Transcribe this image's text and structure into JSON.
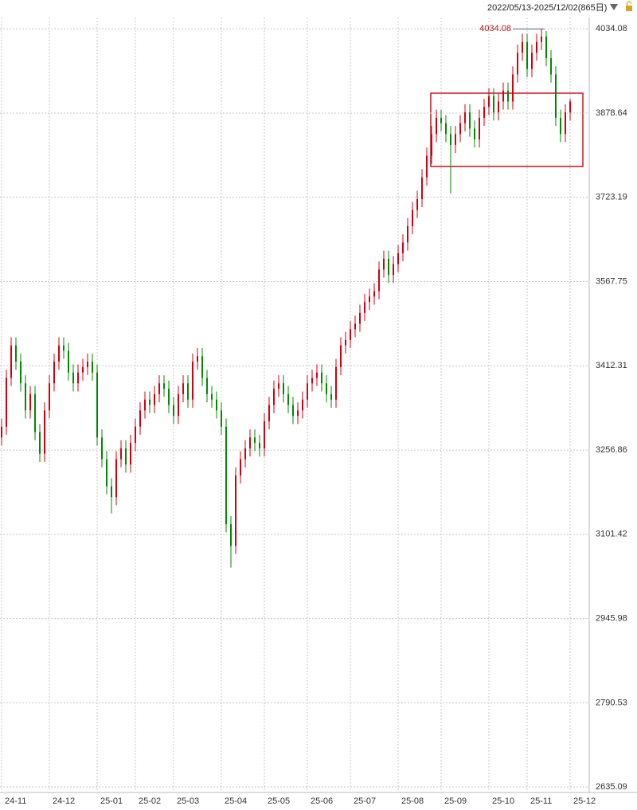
{
  "chart_data": {
    "type": "candlestick",
    "subtitle": "2022/05/13-2025/12/02(865日)",
    "categories": [
      "24-11",
      null,
      null,
      null,
      null,
      null,
      null,
      null,
      null,
      null,
      "24-12",
      null,
      null,
      null,
      null,
      null,
      null,
      null,
      null,
      null,
      "25-01",
      null,
      null,
      null,
      null,
      null,
      null,
      null,
      "25-02",
      null,
      null,
      null,
      null,
      null,
      null,
      null,
      "25-03",
      null,
      null,
      null,
      null,
      null,
      null,
      null,
      null,
      null,
      "25-04",
      null,
      null,
      null,
      null,
      null,
      null,
      null,
      null,
      "25-05",
      null,
      null,
      null,
      null,
      null,
      null,
      null,
      null,
      "25-06",
      null,
      null,
      null,
      null,
      null,
      null,
      null,
      null,
      "25-07",
      null,
      null,
      null,
      null,
      null,
      null,
      null,
      null,
      null,
      "25-08",
      null,
      null,
      null,
      null,
      null,
      null,
      null,
      null,
      "25-09",
      null,
      null,
      null,
      null,
      null,
      null,
      null,
      null,
      null,
      "25-10",
      null,
      null,
      null,
      null,
      null,
      null,
      null,
      "25-11",
      null,
      null,
      null,
      null,
      null,
      null,
      null,
      null,
      "25-12"
    ],
    "open": [
      3280,
      3300,
      3390,
      3450,
      3420,
      3380,
      3330,
      3360,
      3290,
      3250,
      3330,
      3380,
      3420,
      3450,
      3440,
      3400,
      3380,
      3400,
      3410,
      3420,
      3400,
      3280,
      3240,
      3190,
      3170,
      3240,
      3260,
      3230,
      3270,
      3300,
      3330,
      3350,
      3340,
      3360,
      3380,
      3370,
      3340,
      3320,
      3360,
      3380,
      3350,
      3420,
      3430,
      3390,
      3360,
      3350,
      3330,
      3300,
      3120,
      3080,
      3210,
      3240,
      3260,
      3280,
      3270,
      3260,
      3310,
      3340,
      3370,
      3380,
      3360,
      3340,
      3320,
      3330,
      3350,
      3380,
      3390,
      3400,
      3380,
      3360,
      3350,
      3410,
      3450,
      3460,
      3480,
      3490,
      3510,
      3530,
      3540,
      3550,
      3590,
      3610,
      3580,
      3600,
      3620,
      3640,
      3670,
      3700,
      3720,
      3760,
      3800,
      3840,
      3870,
      3860,
      3840,
      3820,
      3840,
      3860,
      3880,
      3850,
      3830,
      3870,
      3890,
      3910,
      3880,
      3900,
      3920,
      3900,
      3950,
      3990,
      4010,
      3960,
      3990,
      4010,
      4020,
      3980,
      3950,
      3870,
      3840,
      3880
    ],
    "high": [
      3315,
      3405,
      3465,
      3465,
      3435,
      3395,
      3375,
      3375,
      3305,
      3345,
      3395,
      3435,
      3465,
      3465,
      3455,
      3415,
      3415,
      3425,
      3435,
      3435,
      3415,
      3295,
      3255,
      3205,
      3255,
      3275,
      3275,
      3285,
      3315,
      3345,
      3365,
      3365,
      3375,
      3395,
      3395,
      3385,
      3355,
      3375,
      3395,
      3395,
      3435,
      3445,
      3445,
      3405,
      3375,
      3365,
      3345,
      3315,
      3135,
      3225,
      3255,
      3275,
      3295,
      3295,
      3285,
      3325,
      3355,
      3385,
      3395,
      3395,
      3375,
      3355,
      3345,
      3365,
      3395,
      3405,
      3415,
      3415,
      3395,
      3375,
      3425,
      3465,
      3475,
      3495,
      3505,
      3525,
      3545,
      3555,
      3565,
      3605,
      3625,
      3625,
      3615,
      3635,
      3655,
      3685,
      3715,
      3735,
      3775,
      3815,
      3855,
      3885,
      3885,
      3875,
      3855,
      3855,
      3875,
      3895,
      3895,
      3865,
      3885,
      3905,
      3925,
      3925,
      3915,
      3935,
      3935,
      3965,
      4005,
      4025,
      4025,
      4005,
      4025,
      4034.08,
      4030,
      3995,
      3965,
      3885,
      3895,
      3905
    ],
    "low": [
      3265,
      3285,
      3375,
      3405,
      3365,
      3315,
      3315,
      3275,
      3235,
      3235,
      3315,
      3365,
      3405,
      3425,
      3385,
      3365,
      3365,
      3385,
      3395,
      3385,
      3265,
      3225,
      3175,
      3140,
      3155,
      3225,
      3215,
      3215,
      3255,
      3285,
      3315,
      3325,
      3325,
      3345,
      3355,
      3325,
      3305,
      3305,
      3345,
      3335,
      3335,
      3405,
      3375,
      3345,
      3335,
      3315,
      3285,
      3105,
      3040,
      3065,
      3195,
      3225,
      3245,
      3255,
      3245,
      3245,
      3295,
      3325,
      3355,
      3345,
      3325,
      3305,
      3305,
      3315,
      3335,
      3365,
      3375,
      3365,
      3345,
      3335,
      3335,
      3395,
      3435,
      3445,
      3465,
      3475,
      3495,
      3515,
      3525,
      3535,
      3575,
      3565,
      3565,
      3585,
      3605,
      3625,
      3655,
      3685,
      3705,
      3745,
      3785,
      3825,
      3845,
      3825,
      3730,
      3805,
      3825,
      3845,
      3835,
      3815,
      3815,
      3855,
      3875,
      3865,
      3865,
      3885,
      3885,
      3885,
      3935,
      3975,
      3945,
      3945,
      3975,
      3995,
      3965,
      3935,
      3855,
      3825,
      3825,
      3865
    ],
    "close": [
      3300,
      3390,
      3450,
      3420,
      3380,
      3330,
      3360,
      3290,
      3250,
      3330,
      3380,
      3420,
      3450,
      3440,
      3400,
      3380,
      3400,
      3410,
      3420,
      3400,
      3280,
      3240,
      3190,
      3170,
      3240,
      3260,
      3230,
      3270,
      3300,
      3330,
      3350,
      3340,
      3360,
      3380,
      3370,
      3340,
      3320,
      3360,
      3380,
      3350,
      3420,
      3430,
      3390,
      3360,
      3350,
      3330,
      3300,
      3120,
      3080,
      3210,
      3240,
      3260,
      3280,
      3270,
      3260,
      3310,
      3340,
      3370,
      3380,
      3360,
      3340,
      3320,
      3330,
      3350,
      3380,
      3390,
      3400,
      3380,
      3360,
      3350,
      3410,
      3450,
      3460,
      3480,
      3490,
      3510,
      3530,
      3540,
      3550,
      3590,
      3610,
      3580,
      3600,
      3620,
      3640,
      3670,
      3700,
      3720,
      3760,
      3800,
      3840,
      3870,
      3860,
      3840,
      3820,
      3840,
      3860,
      3880,
      3850,
      3830,
      3870,
      3890,
      3910,
      3880,
      3900,
      3920,
      3900,
      3950,
      3990,
      4010,
      3960,
      3990,
      4010,
      4020,
      3980,
      3950,
      3870,
      3840,
      3880,
      3900
    ],
    "up_color": "#d4000f",
    "down_color": "#008a00",
    "ylim": [
      2625,
      4055
    ],
    "yticks": [
      2635.09,
      2790.53,
      2945.98,
      3101.42,
      3256.86,
      3412.31,
      3567.75,
      3723.19,
      3878.64,
      4034.08
    ],
    "grid": true,
    "max_label_index": 113
  }
}
